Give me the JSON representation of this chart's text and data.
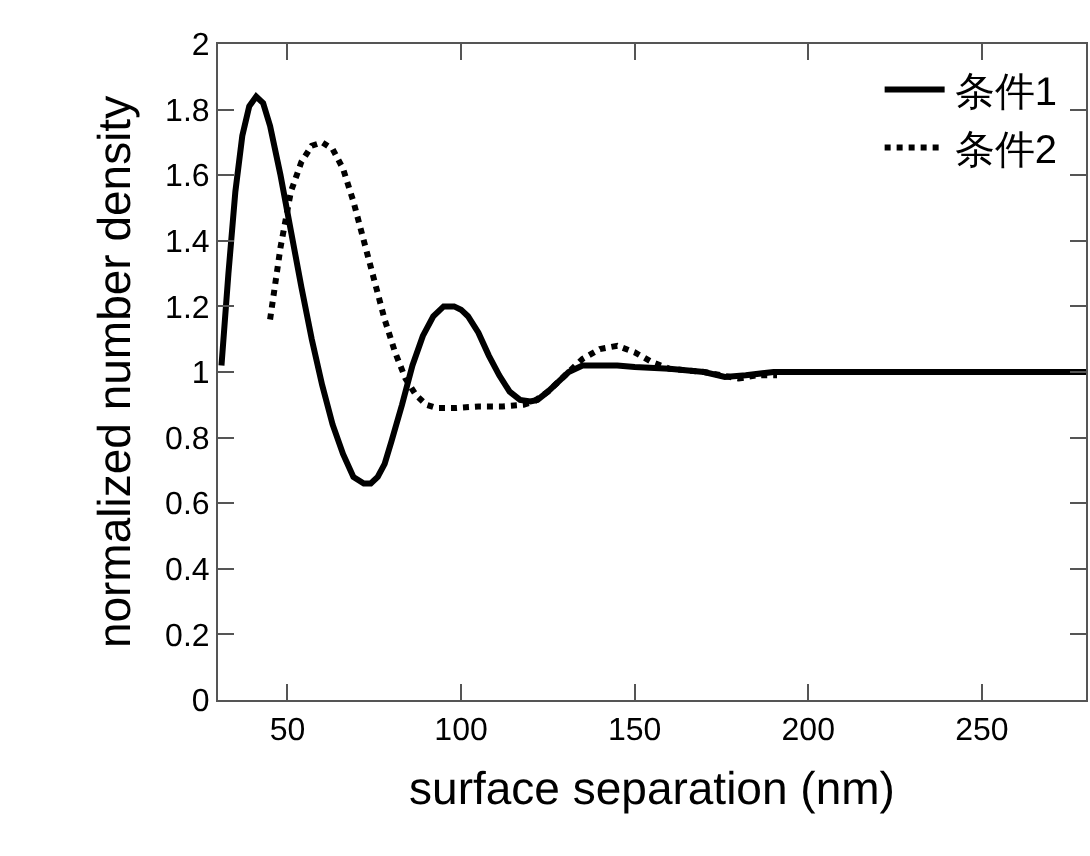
{
  "chart_data": {
    "type": "line",
    "xlabel": "surface separation (nm)",
    "ylabel": "normalized number density",
    "xlim": [
      30,
      280
    ],
    "ylim": [
      0,
      2
    ],
    "xticks": [
      50,
      100,
      150,
      200,
      250
    ],
    "yticks": [
      0,
      0.2,
      0.4,
      0.6,
      0.8,
      1,
      1.2,
      1.4,
      1.6,
      1.8,
      2
    ],
    "grid": false,
    "legend": "top right",
    "series": [
      {
        "name": "条件1",
        "color": "#000000",
        "line_style": "solid",
        "x": [
          31,
          33,
          35,
          37,
          39,
          41,
          43,
          45,
          48,
          51,
          54,
          57,
          60,
          63,
          66,
          69,
          72,
          74,
          76,
          78,
          80,
          83,
          86,
          89,
          92,
          95,
          98,
          100,
          102,
          105,
          108,
          111,
          114,
          117,
          120,
          122,
          125,
          128,
          131,
          135,
          140,
          145,
          150,
          160,
          170,
          176,
          182,
          190,
          200,
          220,
          240,
          260,
          280
        ],
        "values": [
          1.02,
          1.3,
          1.55,
          1.72,
          1.81,
          1.84,
          1.82,
          1.75,
          1.6,
          1.43,
          1.26,
          1.1,
          0.96,
          0.84,
          0.75,
          0.68,
          0.66,
          0.66,
          0.68,
          0.72,
          0.79,
          0.9,
          1.02,
          1.11,
          1.17,
          1.2,
          1.2,
          1.19,
          1.17,
          1.12,
          1.05,
          0.99,
          0.94,
          0.915,
          0.91,
          0.915,
          0.94,
          0.97,
          1.0,
          1.02,
          1.02,
          1.02,
          1.015,
          1.01,
          1.0,
          0.985,
          0.99,
          1.0,
          1.0,
          1.0,
          1.0,
          1.0,
          1.0
        ]
      },
      {
        "name": "条件2",
        "color": "#000000",
        "line_style": "dotted",
        "x": [
          45,
          48,
          51,
          54,
          57,
          60,
          63,
          66,
          69,
          72,
          75,
          78,
          81,
          84,
          87,
          90,
          93,
          98,
          105,
          112,
          118,
          121,
          125,
          130,
          135,
          140,
          145,
          150,
          155,
          160,
          170,
          180,
          185,
          191
        ],
        "values": [
          1.16,
          1.38,
          1.55,
          1.64,
          1.69,
          1.7,
          1.68,
          1.62,
          1.52,
          1.4,
          1.28,
          1.16,
          1.06,
          0.98,
          0.93,
          0.9,
          0.89,
          0.89,
          0.895,
          0.895,
          0.9,
          0.91,
          0.94,
          0.99,
          1.04,
          1.07,
          1.08,
          1.06,
          1.03,
          1.01,
          1.0,
          0.98,
          0.99,
          0.99
        ]
      }
    ]
  }
}
